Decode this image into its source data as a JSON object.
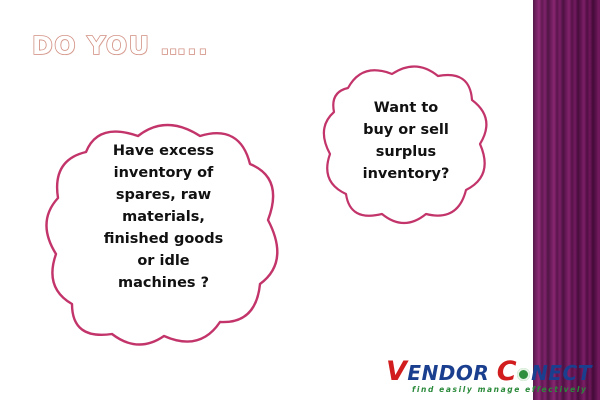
{
  "title": "DO YOU …..",
  "cloud_left": {
    "lines": [
      "Have excess",
      "inventory of",
      "spares, raw",
      "materials,",
      "finished goods",
      "or idle",
      "machines ?"
    ]
  },
  "cloud_right": {
    "lines": [
      "Want to",
      "buy or sell",
      "surplus",
      "inventory?"
    ]
  },
  "logo": {
    "part1_initial": "V",
    "part1_rest": "ENDOR",
    "part2_initial": "C",
    "part2_rest": "NECT",
    "tagline": "find easily manage effectively"
  },
  "colors": {
    "title_outline": "#d28f82",
    "cloud_outline": "#c2346a",
    "side_band": "#6b1358",
    "logo_red": "#d11d1d",
    "logo_blue": "#1b3f8f",
    "logo_green": "#2a8a3a"
  }
}
